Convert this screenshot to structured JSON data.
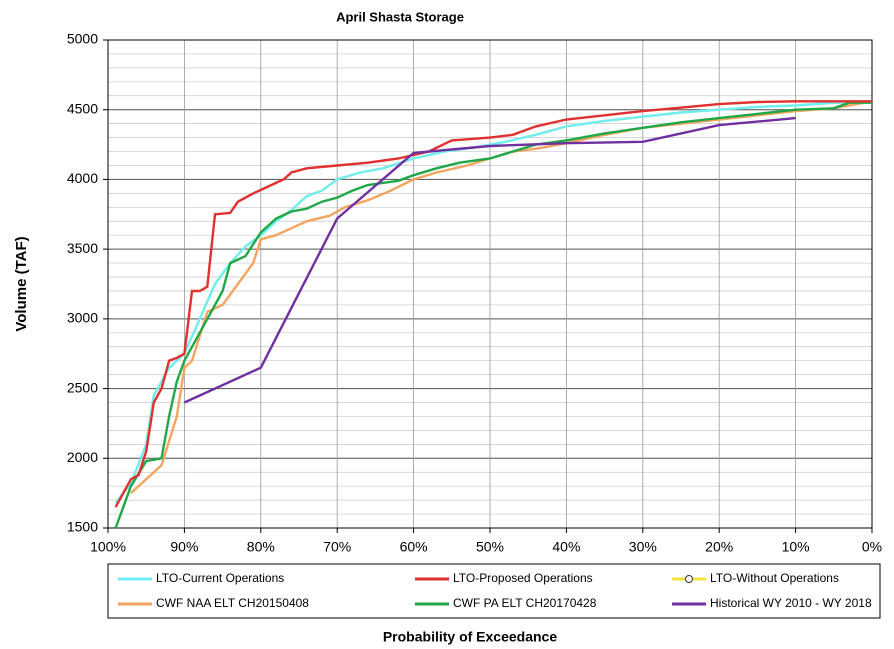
{
  "chart_data": {
    "type": "line",
    "title": "April Shasta Storage",
    "x_label": "Probability of Exceedance",
    "y_label": "Volume (TAF)",
    "xlim": [
      100,
      0
    ],
    "ylim": [
      1500,
      5000
    ],
    "xticks": [
      {
        "value": 100,
        "label": "100%"
      },
      {
        "value": 90,
        "label": "90%"
      },
      {
        "value": 80,
        "label": "80%"
      },
      {
        "value": 70,
        "label": "70%"
      },
      {
        "value": 60,
        "label": "60%"
      },
      {
        "value": 50,
        "label": "50%"
      },
      {
        "value": 40,
        "label": "40%"
      },
      {
        "value": 30,
        "label": "30%"
      },
      {
        "value": 20,
        "label": "20%"
      },
      {
        "value": 10,
        "label": "10%"
      },
      {
        "value": 0,
        "label": "0%"
      }
    ],
    "yticks": [
      1500,
      2000,
      2500,
      3000,
      3500,
      4000,
      4500,
      5000
    ],
    "grid": {
      "major": true,
      "minor_step": 100
    },
    "legend": "bottom",
    "series": [
      {
        "name": "LTO-Without Operations",
        "color": "#f0e040",
        "marker": "circle",
        "x": [
          99,
          97,
          95,
          94,
          92,
          90,
          88,
          86,
          84,
          82,
          80,
          78,
          76,
          74,
          72,
          70,
          67,
          64,
          60,
          56,
          52,
          48,
          44,
          40,
          35,
          30,
          25,
          20,
          15,
          10,
          5,
          0
        ],
        "values": [
          1680,
          1820,
          2100,
          2450,
          2650,
          2750,
          3000,
          3250,
          3400,
          3520,
          3600,
          3700,
          3780,
          3880,
          3920,
          4000,
          4050,
          4080,
          4150,
          4200,
          4230,
          4270,
          4320,
          4380,
          4420,
          4450,
          4480,
          4500,
          4520,
          4530,
          4550,
          4555
        ]
      },
      {
        "name": "LTO-Current Operations",
        "color": "#70eef5",
        "x": [
          99,
          97,
          95,
          94,
          92,
          90,
          88,
          86,
          84,
          82,
          80,
          78,
          76,
          74,
          72,
          70,
          67,
          64,
          60,
          56,
          52,
          48,
          44,
          40,
          35,
          30,
          25,
          20,
          15,
          10,
          5,
          0
        ],
        "values": [
          1680,
          1820,
          2100,
          2450,
          2650,
          2750,
          3000,
          3250,
          3400,
          3520,
          3600,
          3700,
          3780,
          3880,
          3920,
          4000,
          4050,
          4080,
          4150,
          4200,
          4230,
          4270,
          4320,
          4380,
          4420,
          4450,
          4480,
          4500,
          4520,
          4530,
          4550,
          4555
        ]
      },
      {
        "name": "CWF NAA ELT CH20150408",
        "color": "#f4a460",
        "x": [
          97,
          95,
          93,
          91,
          90,
          89,
          87,
          85,
          83,
          81,
          80,
          78,
          76,
          74,
          71,
          69,
          66,
          63,
          60,
          57,
          53,
          50,
          47,
          44,
          40,
          35,
          30,
          25,
          20,
          15,
          10,
          5,
          0
        ],
        "values": [
          1750,
          1850,
          1950,
          2300,
          2650,
          2700,
          3050,
          3100,
          3250,
          3400,
          3570,
          3600,
          3650,
          3700,
          3740,
          3800,
          3850,
          3920,
          4000,
          4050,
          4100,
          4150,
          4200,
          4220,
          4260,
          4320,
          4370,
          4400,
          4430,
          4460,
          4490,
          4510,
          4560
        ]
      },
      {
        "name": "CWF PA ELT CH20170428",
        "color": "#20a848",
        "x": [
          99,
          98,
          97,
          95,
          93,
          92,
          91,
          90,
          88,
          86,
          85,
          84,
          82,
          80,
          78,
          76,
          74,
          72,
          70,
          68,
          66,
          62,
          60,
          57,
          54,
          50,
          47,
          44,
          40,
          35,
          30,
          25,
          20,
          15,
          10,
          5,
          3,
          0
        ],
        "values": [
          1500,
          1650,
          1800,
          1980,
          2000,
          2300,
          2550,
          2700,
          2900,
          3100,
          3200,
          3400,
          3450,
          3620,
          3720,
          3770,
          3790,
          3840,
          3870,
          3920,
          3960,
          3990,
          4030,
          4080,
          4120,
          4150,
          4200,
          4250,
          4280,
          4330,
          4370,
          4410,
          4440,
          4470,
          4500,
          4510,
          4550,
          4550
        ]
      },
      {
        "name": "LTO-Proposed Operations",
        "color": "#e03030",
        "x": [
          99,
          97,
          96,
          95,
          94,
          93,
          92,
          91,
          90,
          89,
          88,
          87,
          86,
          84,
          83,
          81,
          79,
          77,
          76,
          74,
          70,
          66,
          62,
          58,
          55,
          50,
          47,
          44,
          40,
          35,
          30,
          26,
          20,
          15,
          10,
          4,
          0
        ],
        "values": [
          1650,
          1850,
          1880,
          2050,
          2400,
          2500,
          2700,
          2720,
          2750,
          3200,
          3200,
          3230,
          3750,
          3760,
          3840,
          3900,
          3950,
          4000,
          4050,
          4080,
          4100,
          4120,
          4150,
          4200,
          4280,
          4300,
          4320,
          4380,
          4430,
          4460,
          4490,
          4510,
          4540,
          4555,
          4560,
          4560,
          4560
        ]
      },
      {
        "name": "Historical WY 2010 - WY 2018",
        "color": "#7030a0",
        "x": [
          90,
          80,
          70,
          60,
          50,
          40,
          30,
          20,
          10
        ],
        "values": [
          2400,
          2650,
          3720,
          4190,
          4240,
          4260,
          4270,
          4390,
          4440
        ]
      }
    ]
  }
}
